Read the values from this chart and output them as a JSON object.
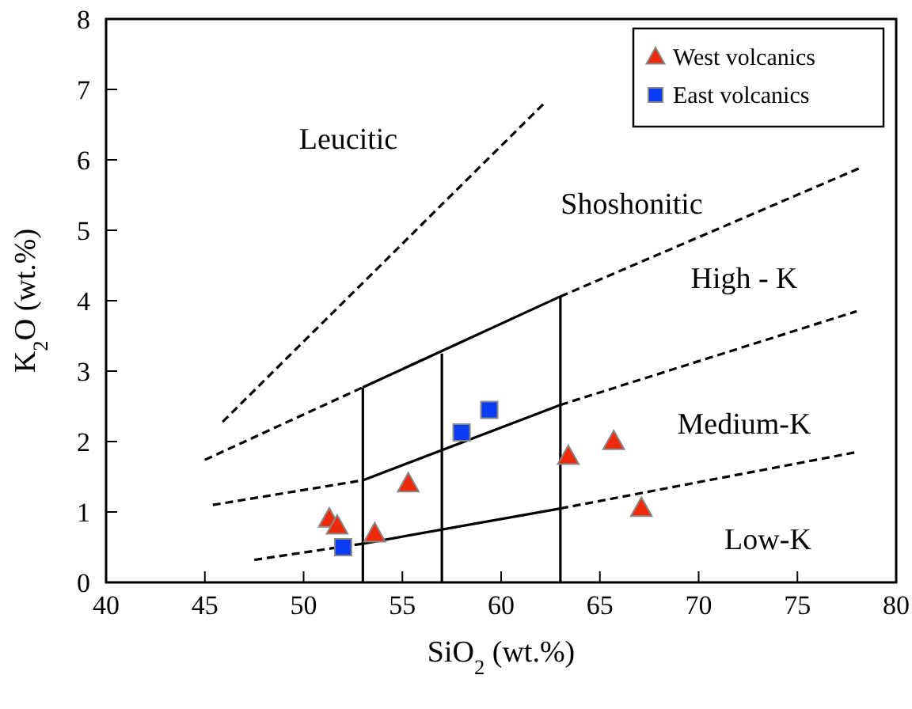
{
  "chart_data": {
    "type": "scatter",
    "xlabel": "SiO$_{2}$ (wt.%)",
    "ylabel": "K$_{2}$O (wt.%)",
    "xlim": [
      40,
      80
    ],
    "ylim": [
      0,
      8
    ],
    "xticks": [
      40,
      45,
      50,
      55,
      60,
      65,
      70,
      75,
      80
    ],
    "yticks": [
      0,
      1,
      2,
      3,
      4,
      5,
      6,
      7,
      8
    ],
    "grid": false,
    "legend": "top right",
    "series": [
      {
        "type": "line",
        "color": "#000000",
        "marker": "none",
        "line_style": "dashed",
        "x": [
          45.9,
          62.2
        ],
        "values": [
          2.28,
          6.81
        ]
      },
      {
        "type": "line",
        "color": "#000000",
        "marker": "none",
        "line_style": "dashed",
        "x": [
          45,
          53
        ],
        "values": [
          1.74,
          2.77
        ]
      },
      {
        "type": "line",
        "color": "#000000",
        "marker": "none",
        "line_style": "solid",
        "x": [
          53,
          63
        ],
        "values": [
          2.77,
          4.06
        ]
      },
      {
        "type": "line",
        "color": "#000000",
        "marker": "none",
        "line_style": "dashed",
        "x": [
          63,
          78.3
        ],
        "values": [
          4.06,
          5.9
        ]
      },
      {
        "type": "line",
        "color": "#000000",
        "marker": "none",
        "line_style": "dashed",
        "x": [
          45.4,
          53
        ],
        "values": [
          1.1,
          1.45
        ]
      },
      {
        "type": "line",
        "color": "#000000",
        "marker": "none",
        "line_style": "solid",
        "x": [
          53,
          63
        ],
        "values": [
          1.45,
          2.52
        ]
      },
      {
        "type": "line",
        "color": "#000000",
        "marker": "none",
        "line_style": "dashed",
        "x": [
          63,
          78
        ],
        "values": [
          2.52,
          3.85
        ]
      },
      {
        "type": "line",
        "color": "#000000",
        "marker": "none",
        "line_style": "dashed",
        "x": [
          47.5,
          53
        ],
        "values": [
          0.32,
          0.55
        ]
      },
      {
        "type": "line",
        "color": "#000000",
        "marker": "none",
        "line_style": "solid",
        "x": [
          53,
          63
        ],
        "values": [
          0.55,
          1.05
        ]
      },
      {
        "type": "line",
        "color": "#000000",
        "marker": "none",
        "line_style": "dashed",
        "x": [
          63,
          78
        ],
        "values": [
          1.05,
          1.85
        ]
      },
      {
        "type": "line",
        "color": "#000000",
        "marker": "none",
        "line_style": "solid",
        "x": [
          53,
          53
        ],
        "values": [
          0,
          2.77
        ]
      },
      {
        "type": "line",
        "color": "#000000",
        "marker": "none",
        "line_style": "solid",
        "x": [
          57,
          57
        ],
        "values": [
          0,
          3.25
        ]
      },
      {
        "type": "line",
        "color": "#000000",
        "marker": "none",
        "line_style": "solid",
        "x": [
          63,
          63
        ],
        "values": [
          0,
          4.06
        ]
      },
      {
        "name": "West volcanics",
        "color": "#ee2a0b",
        "marker": "triangle",
        "x": [
          51.3,
          51.7,
          53.6,
          55.3,
          63.4,
          65.7,
          67.1
        ],
        "values": [
          0.9,
          0.8,
          0.69,
          1.4,
          1.79,
          2.0,
          1.05
        ]
      },
      {
        "name": "East volcanics",
        "color": "#0a3cf5",
        "marker": "square",
        "x": [
          52.0,
          58.0,
          59.4
        ],
        "values": [
          0.5,
          2.13,
          2.45
        ]
      }
    ],
    "annotations": [
      "Leucitic",
      "Shoshonitic",
      "High - K",
      "Medium-K",
      "Low-K"
    ]
  }
}
